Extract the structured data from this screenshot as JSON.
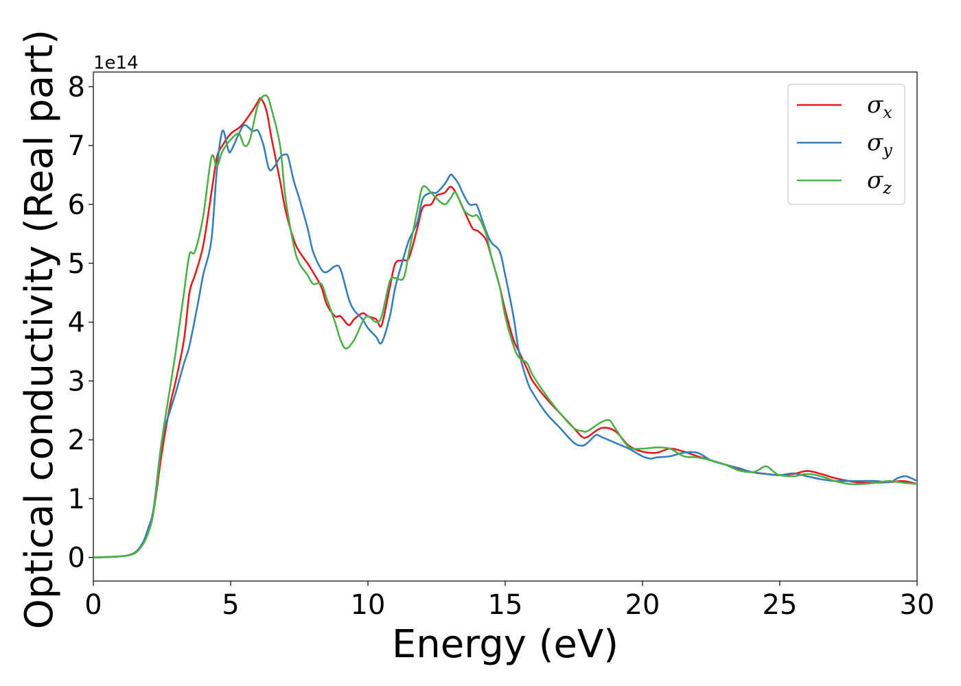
{
  "chart_data": {
    "type": "line",
    "title": "",
    "xlabel": "Energy (eV)",
    "ylabel": "Optical conductivity (Real part)",
    "y_offset_label": "1e14",
    "xlim": [
      0,
      30
    ],
    "ylim": [
      -0.4,
      8.25
    ],
    "y_scale": 100000000000000.0,
    "xticks": [
      0,
      5,
      10,
      15,
      20,
      25,
      30
    ],
    "yticks": [
      0,
      1,
      2,
      3,
      4,
      5,
      6,
      7,
      8
    ],
    "grid": false,
    "legend_position": "top-right",
    "series": [
      {
        "name": "σx",
        "symbol": "σ",
        "subscript": "x",
        "color": "#e41a1c",
        "x": [
          0,
          1.0,
          1.5,
          1.8,
          2.0,
          2.2,
          2.5,
          2.8,
          3.0,
          3.3,
          3.5,
          3.7,
          4.0,
          4.3,
          4.5,
          4.7,
          5.0,
          5.3,
          5.5,
          5.8,
          6.0,
          6.1,
          6.3,
          6.5,
          6.8,
          7.0,
          7.3,
          7.5,
          7.8,
          8.0,
          8.3,
          8.5,
          8.8,
          9.0,
          9.3,
          9.5,
          9.8,
          10.0,
          10.3,
          10.5,
          10.8,
          11.0,
          11.3,
          11.5,
          11.8,
          12.0,
          12.3,
          12.5,
          12.8,
          13.0,
          13.2,
          13.5,
          13.8,
          14.0,
          14.3,
          14.5,
          14.8,
          15.0,
          15.3,
          15.5,
          15.8,
          16.0,
          16.5,
          17.0,
          17.5,
          17.8,
          18.0,
          18.5,
          19.0,
          19.5,
          20.0,
          20.5,
          21.0,
          21.5,
          22.0,
          22.5,
          23.0,
          23.5,
          24.0,
          24.5,
          25.0,
          25.5,
          26.0,
          26.5,
          27.0,
          27.5,
          28.0,
          28.5,
          29.0,
          29.5,
          30.0
        ],
        "y": [
          0,
          0.02,
          0.08,
          0.25,
          0.45,
          0.8,
          1.8,
          2.6,
          3.0,
          3.7,
          4.5,
          4.8,
          5.3,
          6.2,
          6.8,
          7.0,
          7.2,
          7.3,
          7.4,
          7.6,
          7.75,
          7.8,
          7.6,
          7.1,
          6.4,
          5.9,
          5.4,
          5.2,
          5.0,
          4.85,
          4.6,
          4.3,
          4.1,
          4.1,
          3.95,
          4.05,
          4.15,
          4.1,
          4.05,
          3.95,
          4.6,
          5.0,
          5.05,
          5.1,
          5.6,
          5.95,
          6.0,
          6.15,
          6.2,
          6.3,
          6.2,
          5.9,
          5.6,
          5.55,
          5.4,
          5.1,
          4.6,
          4.2,
          3.7,
          3.5,
          3.2,
          3.0,
          2.7,
          2.45,
          2.2,
          2.05,
          2.05,
          2.2,
          2.15,
          1.9,
          1.8,
          1.78,
          1.85,
          1.8,
          1.72,
          1.65,
          1.58,
          1.5,
          1.45,
          1.42,
          1.4,
          1.42,
          1.47,
          1.42,
          1.35,
          1.3,
          1.27,
          1.27,
          1.28,
          1.3,
          1.25
        ]
      },
      {
        "name": "σy",
        "symbol": "σ",
        "subscript": "y",
        "color": "#377eb8",
        "x": [
          0,
          1.0,
          1.5,
          1.8,
          2.0,
          2.2,
          2.5,
          2.8,
          3.0,
          3.3,
          3.5,
          3.8,
          4.0,
          4.3,
          4.5,
          4.7,
          4.9,
          5.0,
          5.3,
          5.5,
          5.8,
          6.0,
          6.2,
          6.4,
          6.6,
          6.8,
          7.0,
          7.1,
          7.3,
          7.5,
          7.8,
          8.0,
          8.3,
          8.5,
          8.8,
          9.0,
          9.3,
          9.5,
          9.8,
          10.0,
          10.3,
          10.5,
          10.8,
          11.0,
          11.3,
          11.5,
          11.8,
          12.0,
          12.3,
          12.5,
          12.8,
          13.0,
          13.1,
          13.3,
          13.5,
          13.7,
          13.9,
          14.0,
          14.3,
          14.5,
          14.8,
          15.0,
          15.3,
          15.5,
          15.8,
          16.0,
          16.5,
          17.0,
          17.5,
          17.8,
          18.0,
          18.3,
          18.5,
          19.0,
          19.5,
          20.0,
          20.3,
          20.5,
          21.0,
          21.5,
          22.0,
          22.5,
          23.0,
          23.5,
          24.0,
          24.5,
          25.0,
          25.5,
          26.0,
          26.5,
          27.0,
          27.5,
          28.0,
          28.5,
          29.0,
          29.3,
          29.6,
          30.0
        ],
        "y": [
          0,
          0.02,
          0.08,
          0.25,
          0.5,
          0.85,
          2.0,
          2.5,
          2.8,
          3.3,
          3.6,
          4.3,
          4.8,
          5.4,
          6.6,
          7.25,
          6.95,
          6.9,
          7.2,
          7.35,
          7.25,
          7.25,
          7.0,
          6.6,
          6.65,
          6.8,
          6.85,
          6.8,
          6.4,
          6.1,
          5.6,
          5.2,
          4.9,
          4.85,
          4.95,
          4.9,
          4.4,
          4.2,
          4.05,
          3.9,
          3.75,
          3.65,
          4.1,
          4.6,
          5.1,
          5.4,
          5.7,
          6.1,
          6.2,
          6.2,
          6.35,
          6.5,
          6.48,
          6.35,
          6.15,
          6.0,
          6.0,
          5.95,
          5.55,
          5.35,
          5.2,
          4.8,
          4.1,
          3.5,
          3.0,
          2.8,
          2.45,
          2.2,
          1.95,
          1.9,
          1.95,
          2.08,
          2.05,
          1.95,
          1.85,
          1.72,
          1.68,
          1.7,
          1.72,
          1.78,
          1.78,
          1.65,
          1.58,
          1.52,
          1.45,
          1.42,
          1.4,
          1.43,
          1.38,
          1.33,
          1.3,
          1.3,
          1.3,
          1.3,
          1.28,
          1.35,
          1.38,
          1.3
        ]
      },
      {
        "name": "σz",
        "symbol": "σ",
        "subscript": "z",
        "color": "#4daf4a",
        "x": [
          0,
          1.0,
          1.5,
          1.8,
          2.0,
          2.2,
          2.5,
          2.8,
          3.0,
          3.3,
          3.5,
          3.7,
          4.0,
          4.3,
          4.5,
          4.7,
          5.0,
          5.3,
          5.5,
          5.7,
          6.0,
          6.3,
          6.5,
          6.8,
          7.0,
          7.3,
          7.5,
          7.8,
          8.0,
          8.3,
          8.5,
          8.8,
          9.0,
          9.2,
          9.5,
          9.8,
          10.0,
          10.3,
          10.5,
          10.8,
          11.0,
          11.3,
          11.5,
          11.8,
          12.0,
          12.3,
          12.5,
          12.8,
          13.0,
          13.2,
          13.5,
          13.8,
          14.0,
          14.3,
          14.5,
          14.8,
          15.0,
          15.3,
          15.5,
          15.8,
          16.0,
          16.5,
          17.0,
          17.5,
          17.8,
          18.0,
          18.5,
          18.8,
          19.0,
          19.5,
          20.0,
          20.5,
          21.0,
          21.5,
          22.0,
          22.5,
          23.0,
          23.5,
          24.0,
          24.2,
          24.5,
          24.8,
          25.0,
          25.5,
          26.0,
          26.5,
          27.0,
          27.5,
          28.0,
          28.5,
          29.0,
          29.5,
          30.0
        ],
        "y": [
          0,
          0.02,
          0.07,
          0.22,
          0.42,
          0.8,
          2.0,
          2.9,
          3.5,
          4.5,
          5.15,
          5.2,
          5.8,
          6.8,
          6.65,
          6.9,
          7.1,
          7.2,
          7.0,
          7.1,
          7.7,
          7.85,
          7.6,
          7.0,
          6.1,
          5.3,
          5.0,
          4.8,
          4.65,
          4.65,
          4.4,
          4.0,
          3.7,
          3.55,
          3.7,
          4.0,
          4.1,
          4.0,
          4.1,
          4.7,
          4.75,
          4.75,
          5.2,
          5.9,
          6.3,
          6.2,
          6.1,
          6.0,
          6.1,
          6.2,
          5.9,
          5.8,
          5.8,
          5.5,
          5.1,
          4.6,
          4.1,
          3.6,
          3.4,
          3.3,
          3.1,
          2.75,
          2.45,
          2.2,
          2.15,
          2.15,
          2.3,
          2.33,
          2.2,
          1.88,
          1.85,
          1.87,
          1.85,
          1.72,
          1.7,
          1.65,
          1.58,
          1.48,
          1.45,
          1.48,
          1.55,
          1.45,
          1.4,
          1.38,
          1.42,
          1.38,
          1.3,
          1.25,
          1.25,
          1.27,
          1.3,
          1.27,
          1.25
        ]
      }
    ]
  }
}
